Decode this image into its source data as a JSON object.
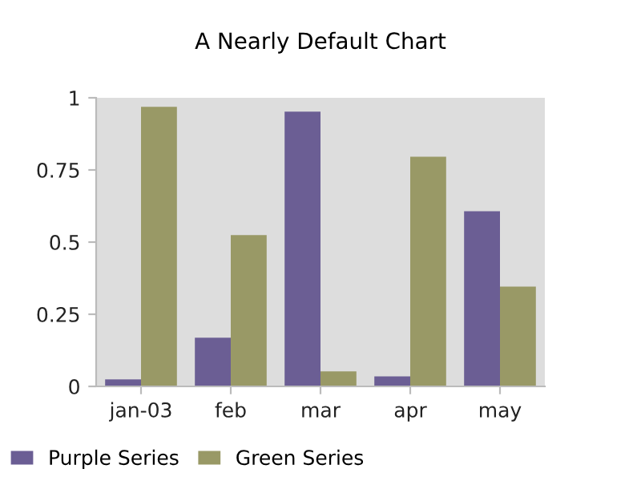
{
  "chart_data": {
    "type": "bar",
    "title": "A Nearly Default Chart",
    "categories": [
      "jan-03",
      "feb",
      "mar",
      "apr",
      "may"
    ],
    "series": [
      {
        "name": "Purple Series",
        "color": "#6b5e94",
        "values": [
          0.024,
          0.169,
          0.952,
          0.035,
          0.607
        ]
      },
      {
        "name": "Green Series",
        "color": "#999966",
        "values": [
          0.969,
          0.524,
          0.052,
          0.796,
          0.346
        ]
      }
    ],
    "ylim": [
      0,
      1
    ],
    "yticks": [
      0,
      0.25,
      0.5,
      0.75,
      1
    ],
    "grid": false,
    "legend": "bottom left"
  }
}
